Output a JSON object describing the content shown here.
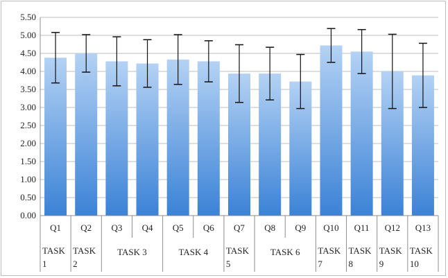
{
  "chart_data": {
    "type": "bar",
    "title": "",
    "xlabel": "",
    "ylabel": "",
    "ylim": [
      0,
      5.5
    ],
    "yticks": [
      "0.00",
      "0.50",
      "1.00",
      "1.50",
      "2.00",
      "2.50",
      "3.00",
      "3.50",
      "4.00",
      "4.50",
      "5.00",
      "5.50"
    ],
    "grid": true,
    "categories": [
      "Q1",
      "Q2",
      "Q3",
      "Q4",
      "Q5",
      "Q6",
      "Q7",
      "Q8",
      "Q9",
      "Q10",
      "Q11",
      "Q12",
      "Q13"
    ],
    "values": [
      4.38,
      4.5,
      4.28,
      4.22,
      4.33,
      4.28,
      3.94,
      3.94,
      3.72,
      4.72,
      4.55,
      4.0,
      3.89
    ],
    "error": [
      0.7,
      0.52,
      0.68,
      0.66,
      0.69,
      0.57,
      0.8,
      0.73,
      0.75,
      0.47,
      0.61,
      1.03,
      0.89
    ],
    "groups": [
      {
        "label": "TASK 1",
        "lines": [
          "TASK",
          "1"
        ],
        "questions": [
          "Q1"
        ]
      },
      {
        "label": "TASK 2",
        "lines": [
          "TASK",
          "2"
        ],
        "questions": [
          "Q2"
        ]
      },
      {
        "label": "TASK 3",
        "lines": [
          "TASK 3"
        ],
        "questions": [
          "Q3",
          "Q4"
        ]
      },
      {
        "label": "TASK 4",
        "lines": [
          "TASK 4"
        ],
        "questions": [
          "Q5",
          "Q6"
        ]
      },
      {
        "label": "TASK 5",
        "lines": [
          "TASK",
          "5"
        ],
        "questions": [
          "Q7"
        ]
      },
      {
        "label": "TASK 6",
        "lines": [
          "TASK 6"
        ],
        "questions": [
          "Q8",
          "Q9"
        ]
      },
      {
        "label": "TASK 7",
        "lines": [
          "TASK",
          "7"
        ],
        "questions": [
          "Q10"
        ]
      },
      {
        "label": "TASK 8",
        "lines": [
          "TASK",
          "8"
        ],
        "questions": [
          "Q11"
        ]
      },
      {
        "label": "TASK 9",
        "lines": [
          "TASK",
          "9"
        ],
        "questions": [
          "Q12"
        ]
      },
      {
        "label": "TASK 10",
        "lines": [
          "TASK",
          "10"
        ],
        "questions": [
          "Q13"
        ]
      }
    ],
    "colors": {
      "bar_top": "#b4d2f4",
      "bar_bottom": "#3b82d6",
      "error_bar": "#111111",
      "grid": "#bdbdbd",
      "axis": "#8c8c8c"
    }
  }
}
